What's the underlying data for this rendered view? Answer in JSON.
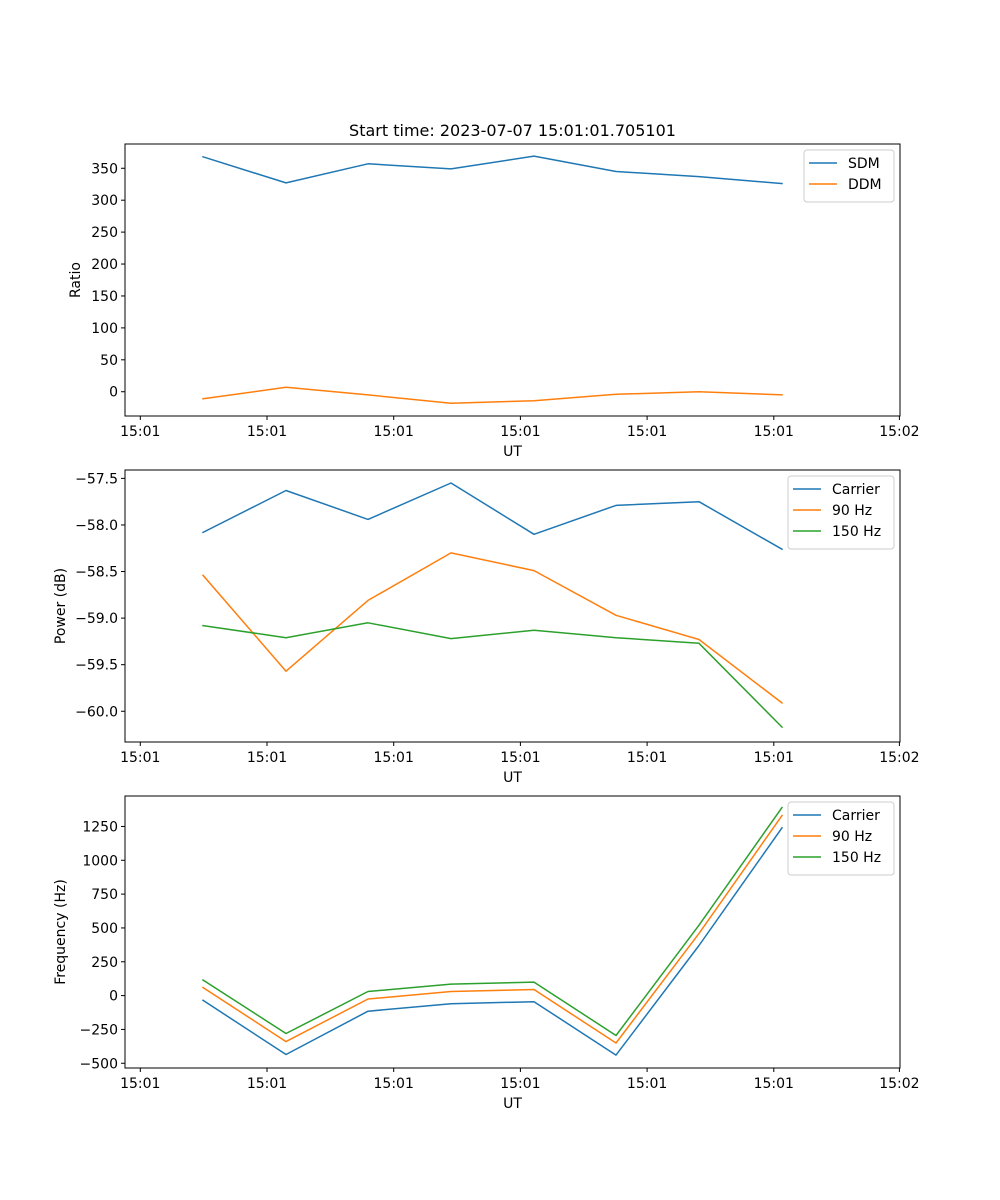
{
  "chart_data": [
    {
      "type": "line",
      "title": "Start time: 2023-07-07 15:01:01.705101",
      "xlabel": "UT",
      "ylabel": "Ratio",
      "x_tick_labels": [
        "15:01",
        "15:01",
        "15:01",
        "15:01",
        "15:01",
        "15:01",
        "15:02"
      ],
      "y_ticks": [
        0,
        50,
        100,
        150,
        200,
        250,
        300,
        350
      ],
      "y_tick_labels": [
        "0",
        "50",
        "100",
        "150",
        "200",
        "250",
        "300",
        "350"
      ],
      "ylim": [
        -38,
        388
      ],
      "legend_position": "top-right",
      "series": [
        {
          "name": "SDM",
          "color": "#1f77b4",
          "values": [
            368,
            327,
            357,
            349,
            369,
            345,
            337,
            326
          ]
        },
        {
          "name": "DDM",
          "color": "#ff7f0e",
          "values": [
            -11,
            7,
            -5,
            -18,
            -14,
            -4,
            0,
            -5
          ]
        }
      ]
    },
    {
      "type": "line",
      "title": "",
      "xlabel": "UT",
      "ylabel": "Power (dB)",
      "x_tick_labels": [
        "15:01",
        "15:01",
        "15:01",
        "15:01",
        "15:01",
        "15:01",
        "15:02"
      ],
      "y_ticks": [
        -60.0,
        -59.5,
        -59.0,
        -58.5,
        -58.0,
        -57.5
      ],
      "y_tick_labels": [
        "−60.0",
        "−59.5",
        "−59.0",
        "−58.5",
        "−58.0",
        "−57.5"
      ],
      "ylim": [
        -60.33,
        -57.41
      ],
      "legend_position": "top-right",
      "series": [
        {
          "name": "Carrier",
          "color": "#1f77b4",
          "values": [
            -58.08,
            -57.63,
            -57.94,
            -57.55,
            -58.1,
            -57.79,
            -57.75,
            -58.26
          ]
        },
        {
          "name": "90 Hz",
          "color": "#ff7f0e",
          "values": [
            -58.54,
            -59.57,
            -58.81,
            -58.3,
            -58.49,
            -58.97,
            -59.23,
            -59.91
          ]
        },
        {
          "name": "150 Hz",
          "color": "#2ca02c",
          "values": [
            -59.08,
            -59.21,
            -59.05,
            -59.22,
            -59.13,
            -59.21,
            -59.27,
            -60.17
          ]
        }
      ]
    },
    {
      "type": "line",
      "title": "",
      "xlabel": "UT",
      "ylabel": "Frequency (Hz)",
      "x_tick_labels": [
        "15:01",
        "15:01",
        "15:01",
        "15:01",
        "15:01",
        "15:01",
        "15:02"
      ],
      "y_ticks": [
        -500,
        -250,
        0,
        250,
        500,
        750,
        1000,
        1250
      ],
      "y_tick_labels": [
        "−500",
        "−250",
        "0",
        "250",
        "500",
        "750",
        "1000",
        "1250"
      ],
      "ylim": [
        -535,
        1475
      ],
      "legend_position": "top-right",
      "series": [
        {
          "name": "Carrier",
          "color": "#1f77b4",
          "values": [
            -35,
            -435,
            -115,
            -60,
            -45,
            -440,
            370,
            1240
          ]
        },
        {
          "name": "90 Hz",
          "color": "#ff7f0e",
          "values": [
            60,
            -340,
            -25,
            30,
            45,
            -350,
            460,
            1330
          ]
        },
        {
          "name": "150 Hz",
          "color": "#2ca02c",
          "values": [
            115,
            -280,
            30,
            85,
            100,
            -295,
            520,
            1390
          ]
        }
      ]
    }
  ]
}
